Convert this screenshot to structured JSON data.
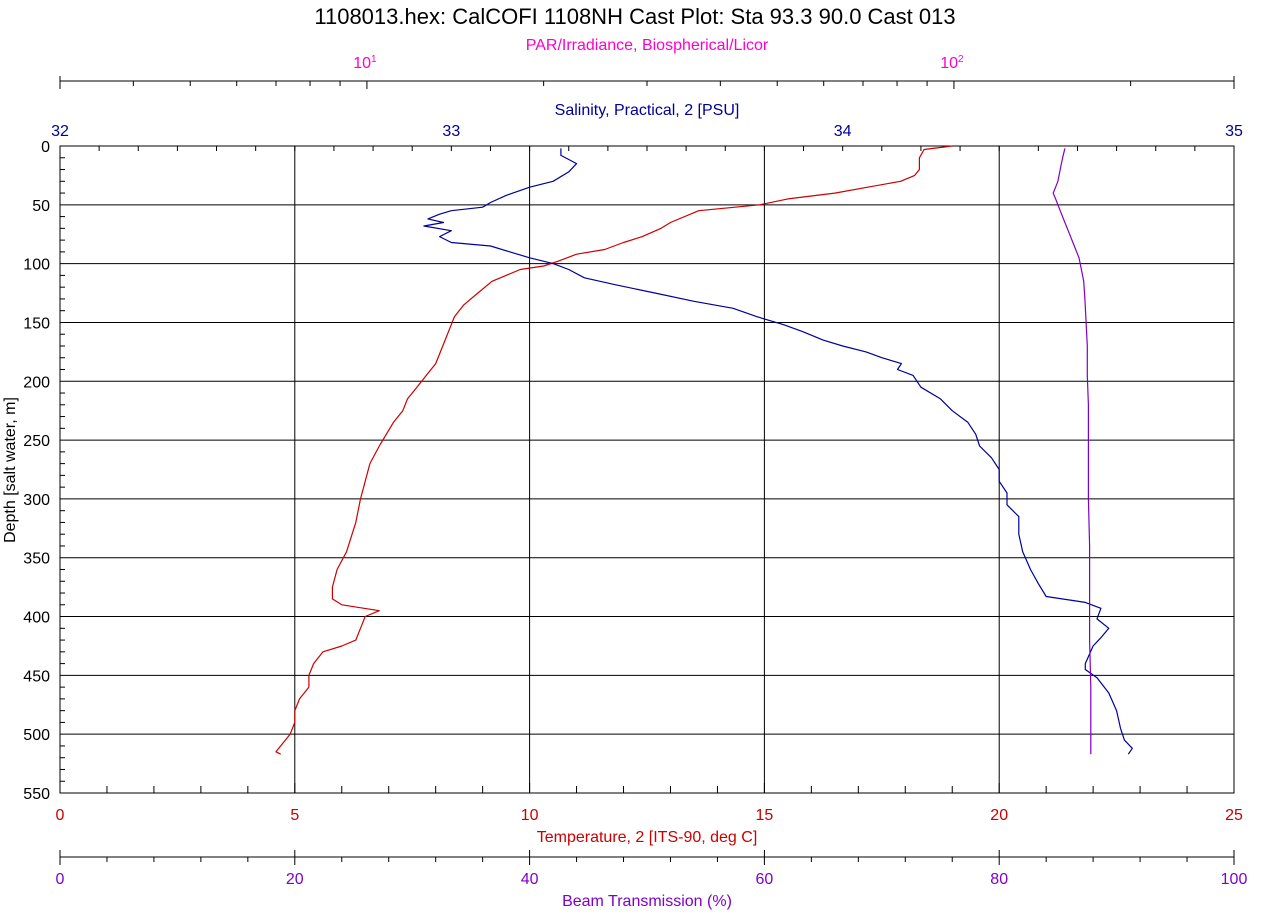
{
  "chart_data": {
    "type": "line",
    "title": "1108013.hex: CalCOFI 1108NH Cast Plot: Sta 93.3 90.0 Cast 013",
    "colors": {
      "temperature": "#cc0000",
      "salinity": "#000099",
      "beam": "#7f00cc",
      "par": "#ff00cc"
    },
    "y_axis": {
      "label": "Depth [salt water, m]",
      "range": [
        0,
        550
      ],
      "ticks": [
        0,
        50,
        100,
        150,
        200,
        250,
        300,
        350,
        400,
        450,
        500,
        550
      ],
      "tick_labels": [
        "0",
        "50",
        "100",
        "150",
        "200",
        "250",
        "300",
        "350",
        "400",
        "450",
        "500",
        "550"
      ],
      "inverted": true
    },
    "axes": {
      "par": {
        "label": "PAR/Irradiance, Biospherical/Licor",
        "scale": "log",
        "range": [
          3,
          300
        ],
        "ticks": [
          10,
          100
        ],
        "tick_labels": [
          {
            "base": "10",
            "exp": "1"
          },
          {
            "base": "10",
            "exp": "2"
          }
        ]
      },
      "salinity": {
        "label": "Salinity, Practical, 2 [PSU]",
        "range": [
          32,
          35
        ],
        "ticks": [
          32,
          33,
          34,
          35
        ],
        "tick_labels": [
          "32",
          "33",
          "34",
          "35"
        ]
      },
      "temperature": {
        "label": "Temperature, 2 [ITS-90, deg C]",
        "range": [
          0,
          25
        ],
        "ticks": [
          0,
          5,
          10,
          15,
          20,
          25
        ],
        "tick_labels": [
          "0",
          "5",
          "10",
          "15",
          "20",
          "25"
        ]
      },
      "beam": {
        "label": "Beam Transmission (%)",
        "range": [
          0,
          100
        ],
        "ticks": [
          0,
          20,
          40,
          60,
          80,
          100
        ],
        "tick_labels": [
          "0",
          "20",
          "40",
          "60",
          "80",
          "100"
        ]
      }
    },
    "series": [
      {
        "axis": "temperature",
        "color": "#cc0000",
        "points": [
          [
            19.0,
            0
          ],
          [
            18.4,
            3
          ],
          [
            18.3,
            10
          ],
          [
            18.3,
            20
          ],
          [
            18.2,
            25
          ],
          [
            17.9,
            30
          ],
          [
            17.2,
            35
          ],
          [
            16.5,
            40
          ],
          [
            15.5,
            45
          ],
          [
            14.9,
            50
          ],
          [
            13.6,
            55
          ],
          [
            13.0,
            65
          ],
          [
            12.8,
            70
          ],
          [
            12.4,
            77
          ],
          [
            12.0,
            82
          ],
          [
            11.6,
            88
          ],
          [
            11.0,
            92
          ],
          [
            10.6,
            98
          ],
          [
            10.3,
            102
          ],
          [
            9.8,
            105
          ],
          [
            9.5,
            110
          ],
          [
            9.2,
            115
          ],
          [
            8.9,
            125
          ],
          [
            8.6,
            135
          ],
          [
            8.4,
            145
          ],
          [
            8.3,
            155
          ],
          [
            8.2,
            165
          ],
          [
            8.1,
            175
          ],
          [
            8.0,
            185
          ],
          [
            7.8,
            195
          ],
          [
            7.6,
            205
          ],
          [
            7.4,
            215
          ],
          [
            7.3,
            225
          ],
          [
            7.1,
            235
          ],
          [
            6.8,
            255
          ],
          [
            6.6,
            270
          ],
          [
            6.5,
            285
          ],
          [
            6.4,
            300
          ],
          [
            6.3,
            320
          ],
          [
            6.1,
            345
          ],
          [
            5.9,
            360
          ],
          [
            5.8,
            375
          ],
          [
            5.8,
            385
          ],
          [
            6.0,
            390
          ],
          [
            6.8,
            395
          ],
          [
            6.5,
            400
          ],
          [
            6.4,
            410
          ],
          [
            6.3,
            420
          ],
          [
            6.0,
            425
          ],
          [
            5.6,
            430
          ],
          [
            5.4,
            440
          ],
          [
            5.3,
            450
          ],
          [
            5.3,
            460
          ],
          [
            5.1,
            470
          ],
          [
            5.0,
            480
          ],
          [
            5.0,
            490
          ],
          [
            4.9,
            500
          ],
          [
            4.7,
            510
          ],
          [
            4.6,
            515
          ],
          [
            4.7,
            517
          ]
        ]
      },
      {
        "axis": "salinity",
        "color": "#000099",
        "points": [
          [
            33.28,
            2
          ],
          [
            33.28,
            8
          ],
          [
            33.32,
            15
          ],
          [
            33.3,
            22
          ],
          [
            33.26,
            30
          ],
          [
            33.2,
            35
          ],
          [
            33.14,
            42
          ],
          [
            33.1,
            48
          ],
          [
            33.08,
            52
          ],
          [
            33.0,
            55
          ],
          [
            32.97,
            58
          ],
          [
            32.94,
            62
          ],
          [
            32.98,
            65
          ],
          [
            32.93,
            68
          ],
          [
            33.0,
            72
          ],
          [
            32.97,
            77
          ],
          [
            33.0,
            82
          ],
          [
            33.1,
            85
          ],
          [
            33.15,
            90
          ],
          [
            33.2,
            95
          ],
          [
            33.26,
            100
          ],
          [
            33.3,
            105
          ],
          [
            33.34,
            112
          ],
          [
            33.42,
            118
          ],
          [
            33.52,
            125
          ],
          [
            33.62,
            132
          ],
          [
            33.72,
            138
          ],
          [
            33.78,
            145
          ],
          [
            33.85,
            152
          ],
          [
            33.9,
            158
          ],
          [
            33.95,
            165
          ],
          [
            34.0,
            170
          ],
          [
            34.06,
            175
          ],
          [
            34.1,
            180
          ],
          [
            34.15,
            185
          ],
          [
            34.14,
            190
          ],
          [
            34.18,
            195
          ],
          [
            34.2,
            205
          ],
          [
            34.25,
            215
          ],
          [
            34.28,
            225
          ],
          [
            34.32,
            235
          ],
          [
            34.34,
            245
          ],
          [
            34.35,
            255
          ],
          [
            34.38,
            265
          ],
          [
            34.4,
            275
          ],
          [
            34.4,
            285
          ],
          [
            34.42,
            295
          ],
          [
            34.42,
            305
          ],
          [
            34.45,
            315
          ],
          [
            34.45,
            330
          ],
          [
            34.46,
            345
          ],
          [
            34.48,
            360
          ],
          [
            34.5,
            372
          ],
          [
            34.52,
            383
          ],
          [
            34.62,
            388
          ],
          [
            34.66,
            393
          ],
          [
            34.65,
            402
          ],
          [
            34.68,
            410
          ],
          [
            34.66,
            418
          ],
          [
            34.64,
            425
          ],
          [
            34.62,
            440
          ],
          [
            34.62,
            445
          ],
          [
            34.65,
            452
          ],
          [
            34.68,
            465
          ],
          [
            34.7,
            480
          ],
          [
            34.71,
            495
          ],
          [
            34.72,
            505
          ],
          [
            34.74,
            512
          ],
          [
            34.73,
            517
          ]
        ]
      },
      {
        "axis": "beam",
        "color": "#7f00cc",
        "points": [
          [
            85.6,
            2
          ],
          [
            85.4,
            10
          ],
          [
            85.2,
            20
          ],
          [
            85.0,
            30
          ],
          [
            84.8,
            35
          ],
          [
            84.6,
            40
          ],
          [
            84.8,
            45
          ],
          [
            85.2,
            55
          ],
          [
            85.6,
            65
          ],
          [
            86.0,
            75
          ],
          [
            86.4,
            85
          ],
          [
            86.8,
            95
          ],
          [
            87.0,
            105
          ],
          [
            87.2,
            115
          ],
          [
            87.3,
            130
          ],
          [
            87.4,
            150
          ],
          [
            87.5,
            170
          ],
          [
            87.5,
            195
          ],
          [
            87.6,
            220
          ],
          [
            87.6,
            260
          ],
          [
            87.6,
            300
          ],
          [
            87.7,
            340
          ],
          [
            87.7,
            380
          ],
          [
            87.7,
            420
          ],
          [
            87.8,
            460
          ],
          [
            87.8,
            500
          ],
          [
            87.8,
            517
          ]
        ]
      }
    ]
  }
}
